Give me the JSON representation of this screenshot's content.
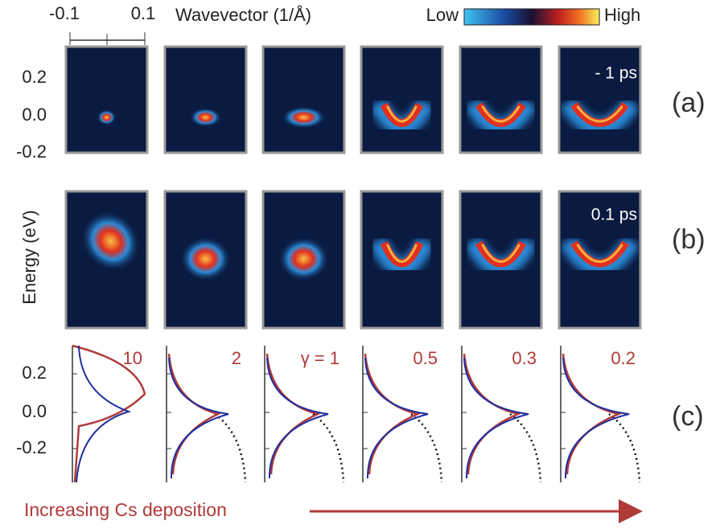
{
  "top_axis": {
    "title": "Wavevector (1/Å)",
    "ticks": [
      "-0.1",
      "0.1"
    ]
  },
  "colorbar": {
    "low": "Low",
    "high": "High"
  },
  "left_axis": {
    "title": "Energy (eV)",
    "row_a_ticks": [
      "0.2",
      "0.0",
      "-0.2"
    ],
    "row_c_ticks": [
      "0.2",
      "0.0",
      "-0.2"
    ]
  },
  "time_labels": [
    "- 1 ps",
    "0.1 ps"
  ],
  "panel_labels": [
    "(a)",
    "(b)",
    "(c)"
  ],
  "gamma_labels": [
    "10",
    "2",
    "γ = 1",
    "0.5",
    "0.3",
    "0.2"
  ],
  "footer": "Increasing Cs deposition"
}
